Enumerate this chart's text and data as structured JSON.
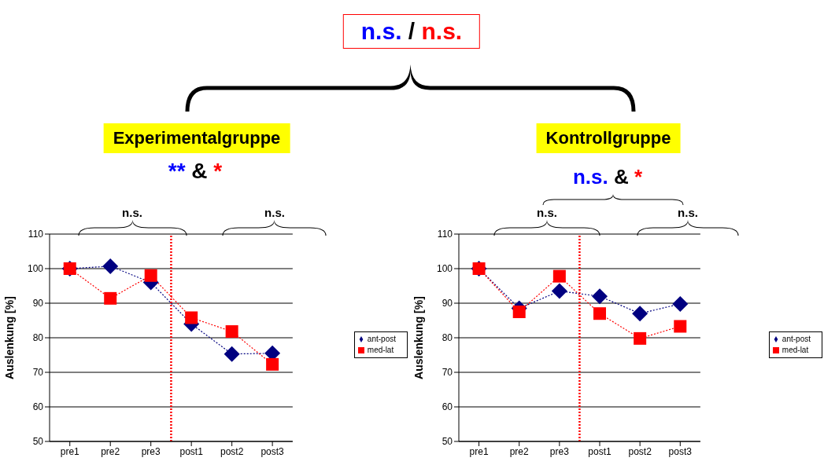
{
  "chart_data": [
    {
      "type": "line",
      "title": "Experimentalgruppe",
      "annotations": [
        "n.s. / n.s.",
        "** & *",
        "n.s.",
        "n.s."
      ],
      "ylabel": "Auslenkung [%]",
      "categories": [
        "pre1",
        "pre2",
        "pre3",
        "post1",
        "post2",
        "post3"
      ],
      "ylim": [
        50,
        110
      ],
      "yticks": [
        50,
        60,
        70,
        80,
        90,
        100,
        110
      ],
      "grid": "y",
      "legend": "right",
      "line_style": "dotted",
      "series": [
        {
          "name": "ant-post",
          "color": "#000080",
          "marker": "diamond",
          "values": [
            100,
            100.7,
            96,
            84,
            75.3,
            75.5
          ]
        },
        {
          "name": "med-lat",
          "color": "#ff0000",
          "marker": "square",
          "values": [
            100,
            91.4,
            98,
            85.8,
            81.8,
            72.3
          ]
        }
      ],
      "ref_lines": [
        {
          "axis": "x",
          "value": "post1",
          "color": "#ff0000",
          "line_style": "dotted"
        }
      ]
    },
    {
      "type": "line",
      "title": "Kontrollgruppe",
      "annotations": [
        "n.s. & *",
        "n.s.",
        "n.s."
      ],
      "ylabel": "Auslenkung [%]",
      "categories": [
        "pre1",
        "pre2",
        "pre3",
        "post1",
        "post2",
        "post3"
      ],
      "ylim": [
        50,
        110
      ],
      "yticks": [
        50,
        60,
        70,
        80,
        90,
        100,
        110
      ],
      "grid": "y",
      "legend": "right",
      "line_style": "dotted",
      "series": [
        {
          "name": "ant-post",
          "color": "#000080",
          "marker": "diamond",
          "values": [
            100,
            88.5,
            93.5,
            92,
            87,
            89.8
          ]
        },
        {
          "name": "med-lat",
          "color": "#ff0000",
          "marker": "square",
          "values": [
            100,
            87.5,
            97.8,
            87,
            79.8,
            83.3
          ]
        }
      ],
      "ref_lines": [
        {
          "axis": "x",
          "value": "post1",
          "color": "#ff0000",
          "line_style": "dotted"
        }
      ]
    }
  ]
}
